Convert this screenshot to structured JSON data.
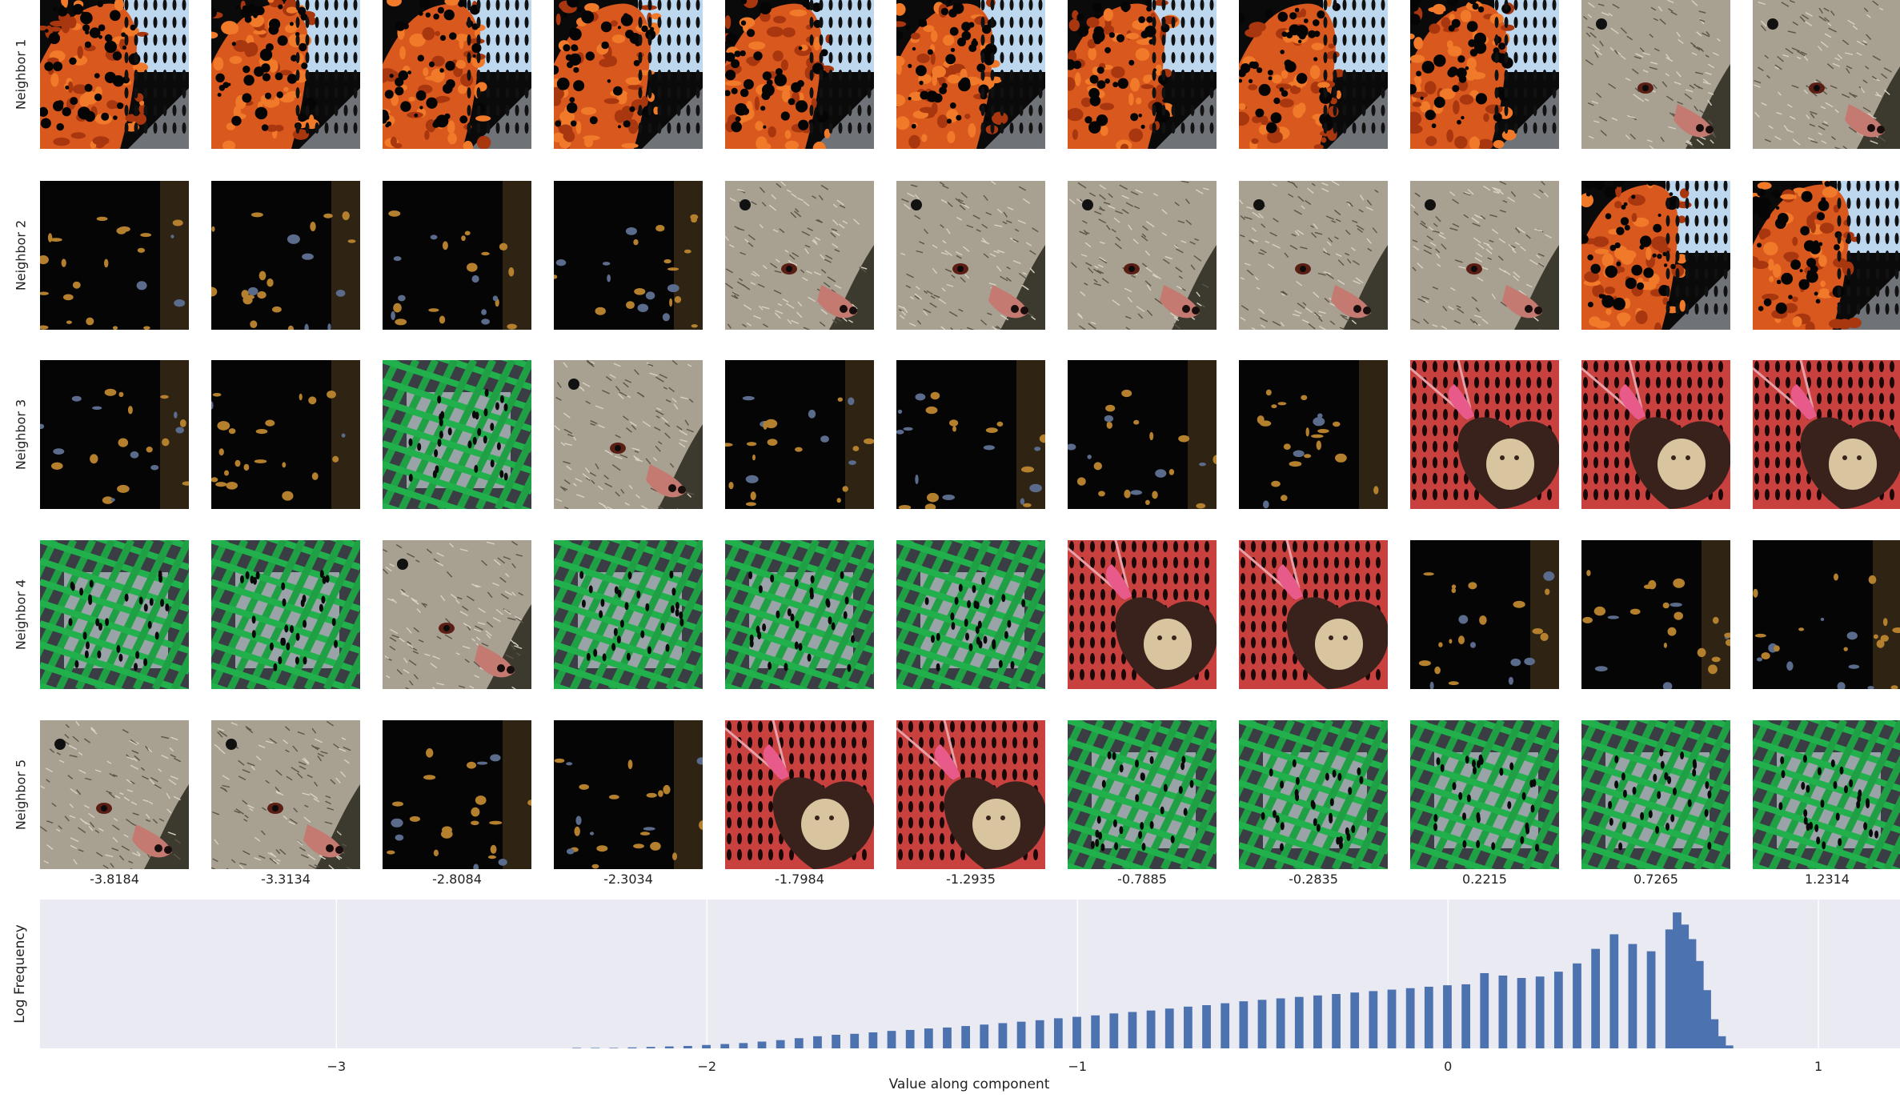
{
  "colors": {
    "hist_bg": "#eaeaf2",
    "bar": "#4c72b0",
    "grid": "#ffffff"
  },
  "icons": {
    "fire": "fire-thumbnail",
    "dark": "dark-tree-thumbnail",
    "mongoose": "mongoose-thumbnail",
    "cage": "green-cage-thumbnail",
    "heart": "heart-locket-thumbnail"
  },
  "row_labels": [
    "Neighbor 1",
    "Neighbor 2",
    "Neighbor 3",
    "Neighbor 4",
    "Neighbor 5"
  ],
  "col_labels": [
    "-3.8184",
    "-3.3134",
    "-2.8084",
    "-2.3034",
    "-1.7984",
    "-1.2935",
    "-0.7885",
    "-0.2835",
    "0.2215",
    "0.7265",
    "1.2314"
  ],
  "grid_images": [
    [
      "fire",
      "fire",
      "fire",
      "fire",
      "fire",
      "fire",
      "fire",
      "fire",
      "fire",
      "mongoose",
      "mongoose"
    ],
    [
      "dark",
      "dark",
      "dark",
      "dark",
      "mongoose",
      "mongoose",
      "mongoose",
      "mongoose",
      "mongoose",
      "fire",
      "fire"
    ],
    [
      "dark",
      "dark",
      "cage",
      "mongoose",
      "dark",
      "dark",
      "dark",
      "dark",
      "heart",
      "heart",
      "heart"
    ],
    [
      "cage",
      "cage",
      "mongoose",
      "cage",
      "cage",
      "cage",
      "heart",
      "heart",
      "dark",
      "dark",
      "dark"
    ],
    [
      "mongoose",
      "mongoose",
      "dark",
      "dark",
      "heart",
      "heart",
      "cage",
      "cage",
      "cage",
      "cage",
      "cage"
    ]
  ],
  "chart_data": {
    "type": "bar",
    "xlabel": "Value along component",
    "ylabel": "Log Frequency",
    "xlim": [
      -3.8,
      1.22
    ],
    "xticks": [
      -3,
      -2,
      -1,
      0,
      1
    ],
    "xtick_labels": [
      "−3",
      "−2",
      "−1",
      "0",
      "1"
    ],
    "grid": true,
    "bin_width": 0.0265,
    "bins": [
      [
        -2.35,
        0.01
      ],
      [
        -2.3,
        0.01
      ],
      [
        -2.25,
        0.01
      ],
      [
        -2.2,
        0.02
      ],
      [
        -2.15,
        0.03
      ],
      [
        -2.1,
        0.04
      ],
      [
        -2.05,
        0.05
      ],
      [
        -2.0,
        0.07
      ],
      [
        -1.95,
        0.09
      ],
      [
        -1.9,
        0.11
      ],
      [
        -1.85,
        0.14
      ],
      [
        -1.8,
        0.17
      ],
      [
        -1.75,
        0.21
      ],
      [
        -1.7,
        0.25
      ],
      [
        -1.65,
        0.28
      ],
      [
        -1.6,
        0.3
      ],
      [
        -1.55,
        0.33
      ],
      [
        -1.5,
        0.36
      ],
      [
        -1.45,
        0.38
      ],
      [
        -1.4,
        0.41
      ],
      [
        -1.35,
        0.43
      ],
      [
        -1.3,
        0.46
      ],
      [
        -1.25,
        0.49
      ],
      [
        -1.2,
        0.52
      ],
      [
        -1.15,
        0.55
      ],
      [
        -1.1,
        0.58
      ],
      [
        -1.05,
        0.62
      ],
      [
        -1.0,
        0.65
      ],
      [
        -0.95,
        0.68
      ],
      [
        -0.9,
        0.72
      ],
      [
        -0.85,
        0.75
      ],
      [
        -0.8,
        0.78
      ],
      [
        -0.75,
        0.82
      ],
      [
        -0.7,
        0.86
      ],
      [
        -0.65,
        0.89
      ],
      [
        -0.6,
        0.93
      ],
      [
        -0.55,
        0.97
      ],
      [
        -0.5,
        1.0
      ],
      [
        -0.45,
        1.03
      ],
      [
        -0.4,
        1.06
      ],
      [
        -0.35,
        1.09
      ],
      [
        -0.3,
        1.12
      ],
      [
        -0.25,
        1.15
      ],
      [
        -0.2,
        1.18
      ],
      [
        -0.15,
        1.21
      ],
      [
        -0.1,
        1.24
      ],
      [
        -0.05,
        1.27
      ],
      [
        0.0,
        1.3
      ],
      [
        0.05,
        1.32
      ],
      [
        0.1,
        1.55
      ],
      [
        0.15,
        1.5
      ],
      [
        0.2,
        1.45
      ],
      [
        0.25,
        1.48
      ],
      [
        0.3,
        1.58
      ],
      [
        0.35,
        1.75
      ],
      [
        0.4,
        2.05
      ],
      [
        0.45,
        2.35
      ],
      [
        0.5,
        2.15
      ],
      [
        0.55,
        2.0
      ],
      [
        0.6,
        2.45
      ],
      [
        0.62,
        2.8
      ],
      [
        0.64,
        2.55
      ],
      [
        0.66,
        2.25
      ],
      [
        0.68,
        1.8
      ],
      [
        0.7,
        1.2
      ],
      [
        0.72,
        0.6
      ],
      [
        0.74,
        0.25
      ],
      [
        0.76,
        0.06
      ]
    ],
    "ymax": 3.0
  }
}
